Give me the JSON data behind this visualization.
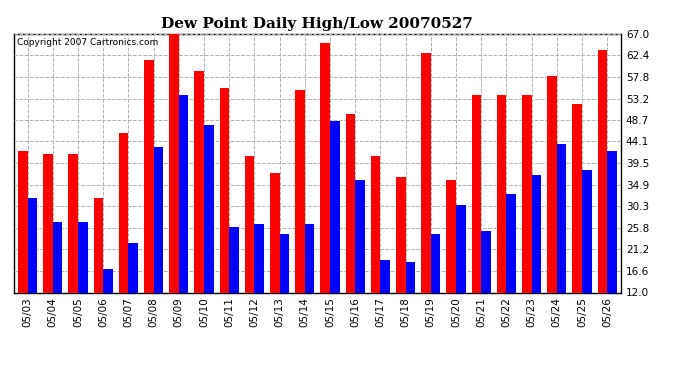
{
  "title": "Dew Point Daily High/Low 20070527",
  "copyright": "Copyright 2007 Cartronics.com",
  "dates": [
    "05/03",
    "05/04",
    "05/05",
    "05/06",
    "05/07",
    "05/08",
    "05/09",
    "05/10",
    "05/11",
    "05/12",
    "05/13",
    "05/14",
    "05/15",
    "05/16",
    "05/17",
    "05/18",
    "05/19",
    "05/20",
    "05/21",
    "05/22",
    "05/23",
    "05/24",
    "05/25",
    "05/26"
  ],
  "highs": [
    42.0,
    41.5,
    41.5,
    32.0,
    46.0,
    61.5,
    68.0,
    59.0,
    55.5,
    41.0,
    37.5,
    55.0,
    65.0,
    50.0,
    41.0,
    36.5,
    63.0,
    36.0,
    54.0,
    54.0,
    54.0,
    58.0,
    52.0,
    63.5
  ],
  "lows": [
    32.0,
    27.0,
    27.0,
    17.0,
    22.5,
    43.0,
    54.0,
    47.5,
    26.0,
    26.5,
    24.5,
    26.5,
    48.5,
    36.0,
    19.0,
    18.5,
    24.5,
    30.5,
    25.0,
    33.0,
    37.0,
    43.5,
    38.0,
    42.0
  ],
  "high_color": "#ff0000",
  "low_color": "#0000ff",
  "bg_color": "#ffffff",
  "plot_bg_color": "#ffffff",
  "grid_color": "#b0b0b0",
  "ymin": 12.0,
  "ymax": 67.0,
  "yticks": [
    12.0,
    16.6,
    21.2,
    25.8,
    30.3,
    34.9,
    39.5,
    44.1,
    48.7,
    53.2,
    57.8,
    62.4,
    67.0
  ]
}
